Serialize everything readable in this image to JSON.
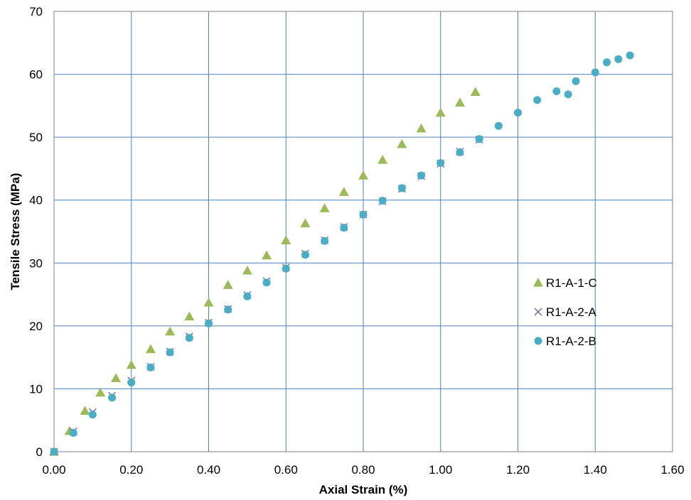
{
  "chart_data": {
    "type": "scatter",
    "xlabel": "Axial  Strain (%)",
    "ylabel": "Tensile Stress (MPa)",
    "xlim": [
      0,
      1.6
    ],
    "ylim": [
      0,
      70
    ],
    "x_ticks": [
      0,
      0.2,
      0.4,
      0.6,
      0.8,
      1.0,
      1.2,
      1.4,
      1.6
    ],
    "x_tick_labels": [
      "0.00",
      "0.20",
      "0.40",
      "0.60",
      "0.80",
      "1.00",
      "1.20",
      "1.40",
      "1.60"
    ],
    "y_ticks": [
      0,
      10,
      20,
      30,
      40,
      50,
      60,
      70
    ],
    "y_tick_labels": [
      "0",
      "10",
      "20",
      "30",
      "40",
      "50",
      "60",
      "70"
    ],
    "grid": true,
    "legend_position": "right",
    "series": [
      {
        "name": "R1-A-1-C",
        "marker": "triangle",
        "color": "#9bbb59",
        "x": [
          0.0,
          0.04,
          0.08,
          0.12,
          0.16,
          0.2,
          0.25,
          0.3,
          0.35,
          0.4,
          0.45,
          0.5,
          0.55,
          0.6,
          0.65,
          0.7,
          0.75,
          0.8,
          0.85,
          0.9,
          0.95,
          1.0,
          1.05,
          1.09
        ],
        "y": [
          0.0,
          3.3,
          6.5,
          9.4,
          11.7,
          13.8,
          16.3,
          19.1,
          21.5,
          23.7,
          26.5,
          28.8,
          31.2,
          33.6,
          36.3,
          38.7,
          41.3,
          43.9,
          46.4,
          48.9,
          51.4,
          53.9,
          55.5,
          57.2
        ]
      },
      {
        "name": "R1-A-2-A",
        "marker": "x",
        "color": "#8064a2",
        "x": [
          0.0,
          0.05,
          0.1,
          0.15,
          0.2,
          0.25,
          0.3,
          0.35,
          0.4,
          0.45,
          0.5,
          0.55,
          0.6,
          0.65,
          0.7,
          0.75,
          0.8,
          0.85,
          0.9,
          0.95,
          1.0,
          1.05,
          1.1
        ],
        "y": [
          0.0,
          3.2,
          6.3,
          8.9,
          11.3,
          13.5,
          15.9,
          18.3,
          20.5,
          22.7,
          24.9,
          27.1,
          29.3,
          31.5,
          33.6,
          35.7,
          37.7,
          39.8,
          41.8,
          43.8,
          45.8,
          47.7,
          49.6
        ]
      },
      {
        "name": "R1-A-2-B",
        "marker": "circle",
        "color": "#4bacc6",
        "x": [
          0.0,
          0.05,
          0.1,
          0.15,
          0.2,
          0.25,
          0.3,
          0.35,
          0.4,
          0.45,
          0.5,
          0.55,
          0.6,
          0.65,
          0.7,
          0.75,
          0.8,
          0.85,
          0.9,
          0.95,
          1.0,
          1.05,
          1.1,
          1.15,
          1.2,
          1.25,
          1.3,
          1.33,
          1.35,
          1.4,
          1.43,
          1.46,
          1.49
        ],
        "y": [
          0.0,
          3.0,
          5.9,
          8.6,
          11.0,
          13.4,
          15.8,
          18.1,
          20.4,
          22.6,
          24.7,
          26.9,
          29.1,
          31.3,
          33.5,
          35.6,
          37.7,
          39.9,
          41.9,
          43.9,
          45.9,
          47.6,
          49.7,
          51.8,
          53.9,
          55.9,
          57.3,
          56.8,
          58.9,
          60.3,
          61.9,
          62.4,
          63.0
        ]
      }
    ]
  }
}
